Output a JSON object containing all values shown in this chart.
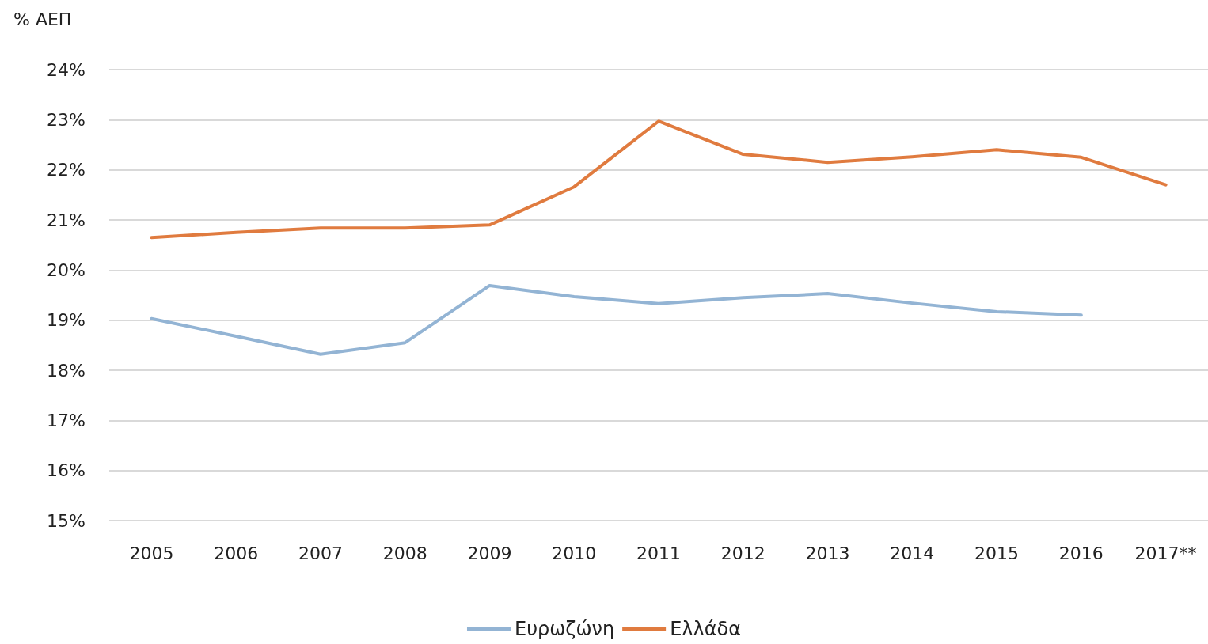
{
  "chart_data": {
    "type": "line",
    "ylabel": "% ΑΕΠ",
    "categories": [
      "2005",
      "2006",
      "2007",
      "2008",
      "2009",
      "2010",
      "2011",
      "2012",
      "2013",
      "2014",
      "2015",
      "2016",
      "2017**"
    ],
    "series": [
      {
        "name": "Ευρωζώνη",
        "color": "#93b4d4",
        "values": [
          19.03,
          18.68,
          18.32,
          18.55,
          19.69,
          19.47,
          19.33,
          19.45,
          19.53,
          19.34,
          19.17,
          19.1,
          null
        ]
      },
      {
        "name": "Ελλάδα",
        "color": "#e07b3f",
        "values": [
          20.65,
          20.75,
          20.84,
          20.84,
          20.9,
          21.66,
          22.97,
          22.31,
          22.15,
          22.26,
          22.4,
          22.25,
          21.7
        ]
      }
    ],
    "ylim": [
      15,
      24
    ],
    "yticks": [
      {
        "value": 15,
        "label": "15%"
      },
      {
        "value": 16,
        "label": "16%"
      },
      {
        "value": 17,
        "label": "17%"
      },
      {
        "value": 18,
        "label": "18%"
      },
      {
        "value": 19,
        "label": "19%"
      },
      {
        "value": 20,
        "label": "20%"
      },
      {
        "value": 21,
        "label": "21%"
      },
      {
        "value": 22,
        "label": "22%"
      },
      {
        "value": 23,
        "label": "23%"
      },
      {
        "value": 24,
        "label": "24%"
      }
    ],
    "grid": "y",
    "legend": "bottom",
    "marker": "none",
    "line_style": "solid"
  }
}
